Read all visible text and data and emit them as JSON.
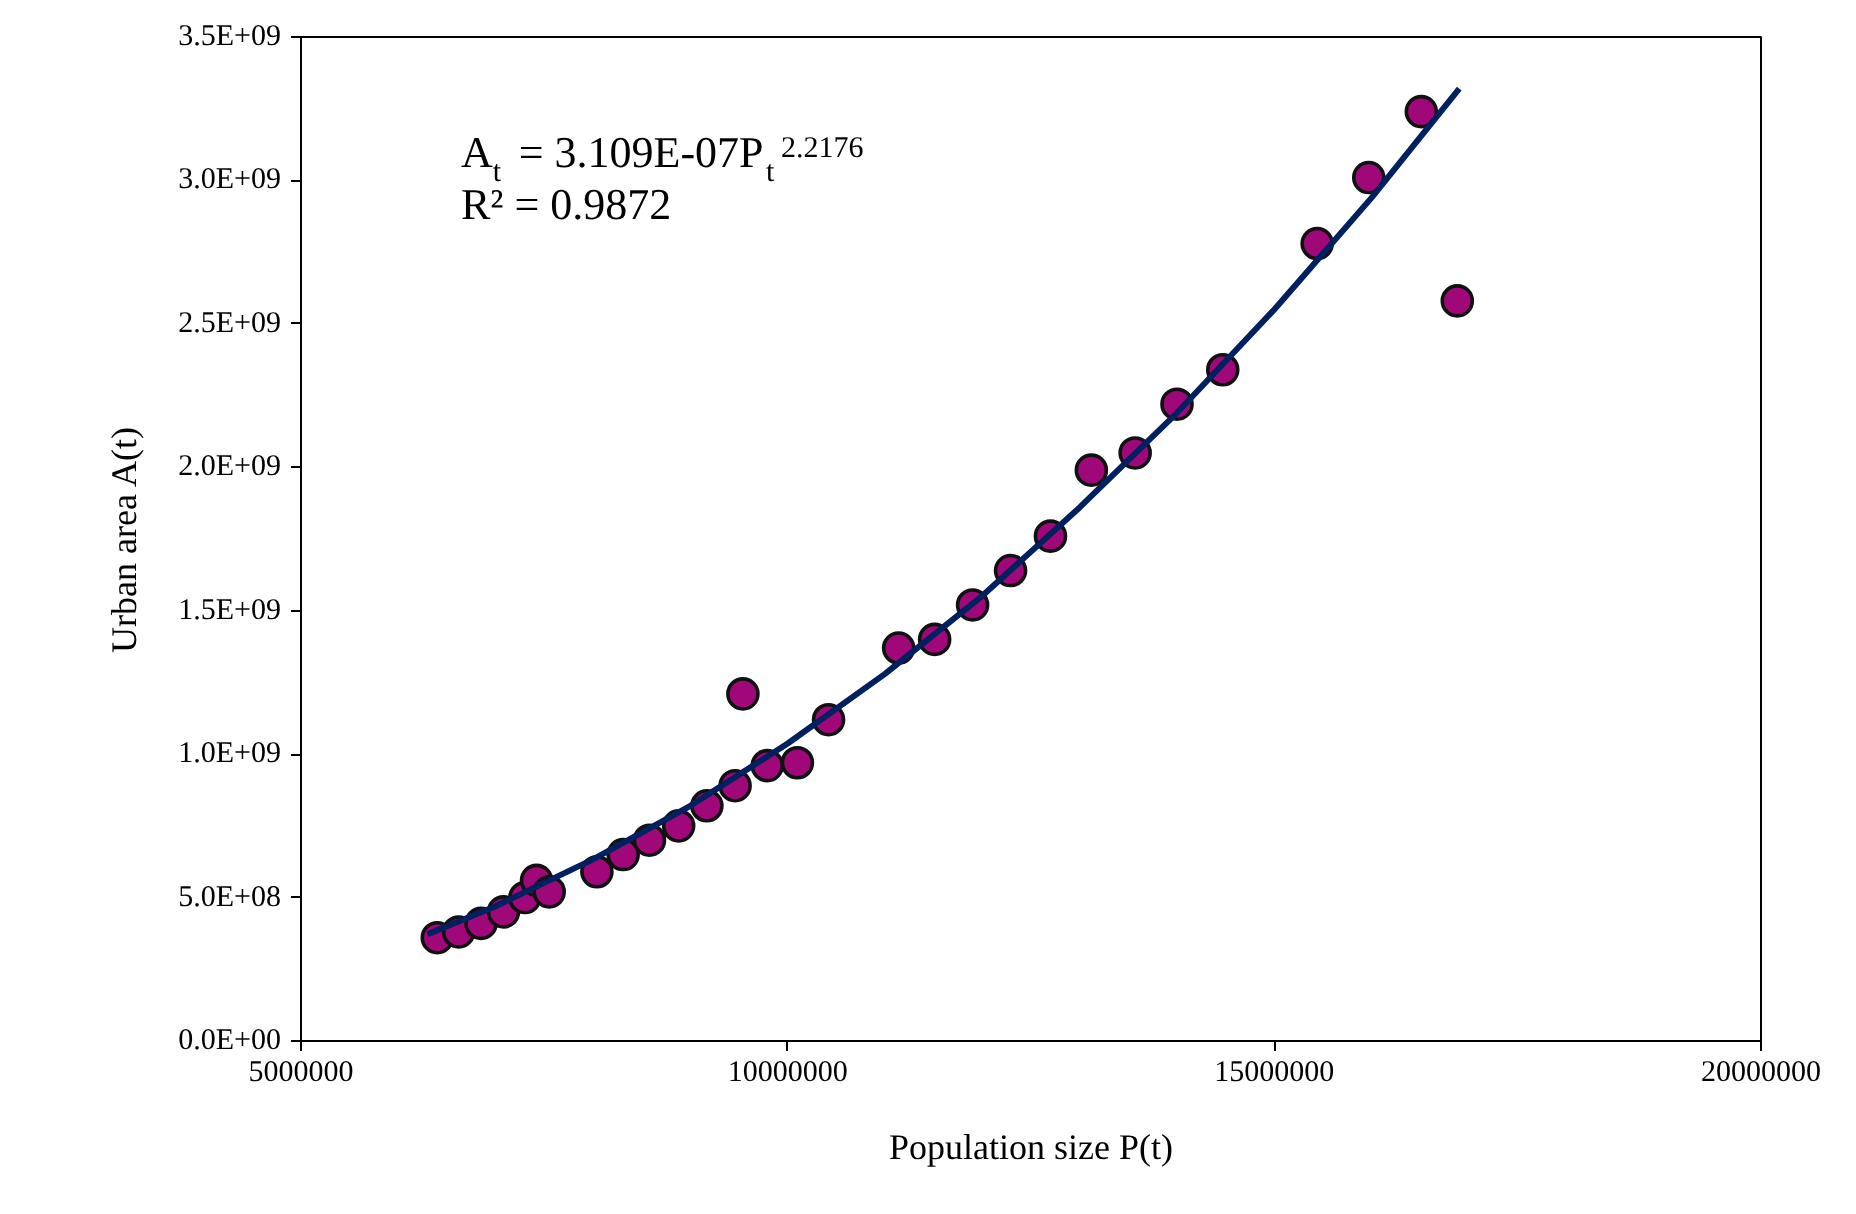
{
  "chart_data": {
    "type": "scatter",
    "xlabel": "Population size P(t)",
    "ylabel": "Urban area A(t)",
    "xlim": [
      5000000,
      20000000
    ],
    "xticks": [
      5000000,
      10000000,
      15000000,
      20000000
    ],
    "ylim": [
      0,
      3500000000
    ],
    "yticks": [
      {
        "value": 0,
        "label": "0.0E+00"
      },
      {
        "value": 500000000,
        "label": "5.0E+08"
      },
      {
        "value": 1000000000,
        "label": "1.0E+09"
      },
      {
        "value": 1500000000,
        "label": "1.5E+09"
      },
      {
        "value": 2000000000,
        "label": "2.0E+09"
      },
      {
        "value": 2500000000,
        "label": "2.5E+09"
      },
      {
        "value": 3000000000,
        "label": "3.0E+09"
      },
      {
        "value": 3500000000,
        "label": "3.5E+09"
      }
    ],
    "grid": false,
    "marker": "circle",
    "annotations": [
      "A$_{t}$ = 3.109E-07P$_{t}$$^{2.2176}$",
      "R² = 0.9872"
    ],
    "series": [
      {
        "color": "#a0087a",
        "x": [
          6400000,
          6620000,
          6850000,
          7080000,
          7300000,
          7420000,
          7550000,
          8040000,
          8310000,
          8580000,
          8880000,
          9170000,
          9460000,
          9540000,
          9790000,
          10100000,
          10420000,
          11140000,
          11510000,
          11900000,
          12290000,
          12700000,
          13120000,
          13570000,
          14000000,
          14470000,
          15440000,
          15970000,
          16510000,
          16880000
        ],
        "values": [
          360000000,
          380000000,
          410000000,
          450000000,
          500000000,
          560000000,
          520000000,
          590000000,
          650000000,
          700000000,
          750000000,
          820000000,
          890000000,
          1210000000,
          960000000,
          970000000,
          1120000000,
          1370000000,
          1400000000,
          1520000000,
          1640000000,
          1760000000,
          1990000000,
          2050000000,
          2220000000,
          2340000000,
          2780000000,
          3010000000,
          3240000000,
          2580000000
        ]
      },
      {
        "type": "line",
        "color": "#002060",
        "line_style": "solid",
        "marker": "none",
        "x": [
          6300000,
          7000000,
          8000000,
          9000000,
          10000000,
          11000000,
          12000000,
          13000000,
          14000000,
          15000000,
          16000000,
          16900000
        ],
        "values": [
          372000000,
          470000000,
          633000000,
          820000000,
          1037000000,
          1280000000,
          1552000000,
          1860000000,
          2190000000,
          2550000000,
          2940000000,
          3320000000
        ]
      }
    ]
  }
}
